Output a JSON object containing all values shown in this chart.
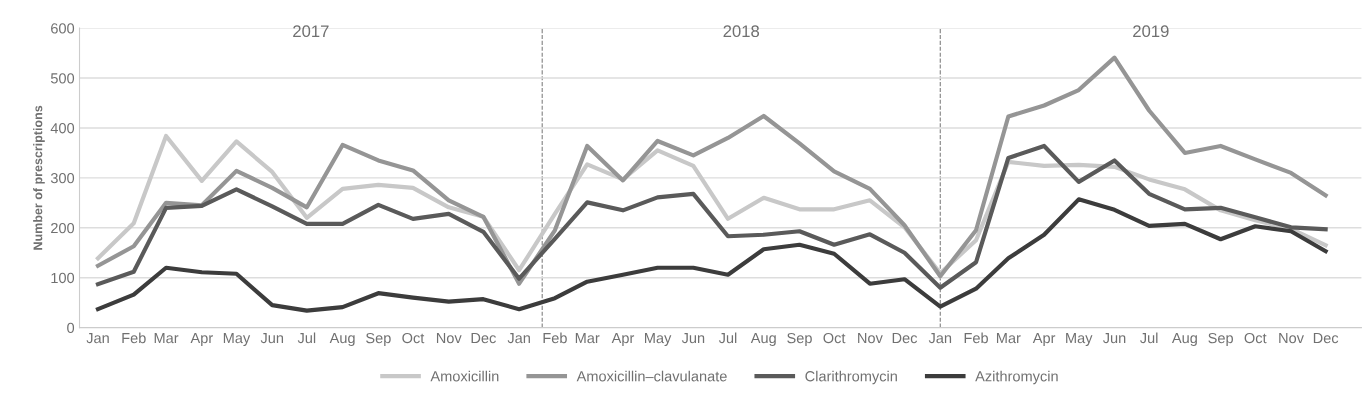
{
  "chart_data": {
    "type": "line",
    "ylabel": "Number of prescriptions",
    "x": [
      "2017-01",
      "2017-02",
      "2017-03",
      "2017-04",
      "2017-05",
      "2017-06",
      "2017-07",
      "2017-08",
      "2017-09",
      "2017-10",
      "2017-11",
      "2017-12",
      "2018-01",
      "2018-02",
      "2018-03",
      "2018-04",
      "2018-05",
      "2018-06",
      "2018-07",
      "2018-08",
      "2018-09",
      "2018-10",
      "2018-11",
      "2018-12",
      "2019-01",
      "2019-02",
      "2019-03",
      "2019-04",
      "2019-05",
      "2019-06",
      "2019-07",
      "2019-08",
      "2019-09",
      "2019-10",
      "2019-11",
      "2019-12"
    ],
    "xlim": [
      "2016-12-16",
      "2020-01-01"
    ],
    "xticks": [
      {
        "value": "2017-01",
        "label": "Jan"
      },
      {
        "value": "2017-02",
        "label": "Feb"
      },
      {
        "value": "2017-03",
        "label": "Mar"
      },
      {
        "value": "2017-04",
        "label": "Apr"
      },
      {
        "value": "2017-05",
        "label": "May"
      },
      {
        "value": "2017-06",
        "label": "Jun"
      },
      {
        "value": "2017-07",
        "label": "Jul"
      },
      {
        "value": "2017-08",
        "label": "Aug"
      },
      {
        "value": "2017-09",
        "label": "Sep"
      },
      {
        "value": "2017-10",
        "label": "Oct"
      },
      {
        "value": "2017-11",
        "label": "Nov"
      },
      {
        "value": "2017-12",
        "label": "Dec"
      },
      {
        "value": "2018-01",
        "label": "Jan"
      },
      {
        "value": "2018-02",
        "label": "Feb"
      },
      {
        "value": "2018-03",
        "label": "Mar"
      },
      {
        "value": "2018-04",
        "label": "Apr"
      },
      {
        "value": "2018-05",
        "label": "May"
      },
      {
        "value": "2018-06",
        "label": "Jun"
      },
      {
        "value": "2018-07",
        "label": "Jul"
      },
      {
        "value": "2018-08",
        "label": "Aug"
      },
      {
        "value": "2018-09",
        "label": "Sep"
      },
      {
        "value": "2018-10",
        "label": "Oct"
      },
      {
        "value": "2018-11",
        "label": "Nov"
      },
      {
        "value": "2018-12",
        "label": "Dec"
      },
      {
        "value": "2019-01",
        "label": "Jan"
      },
      {
        "value": "2019-02",
        "label": "Feb"
      },
      {
        "value": "2019-03",
        "label": "Mar"
      },
      {
        "value": "2019-04",
        "label": "Apr"
      },
      {
        "value": "2019-05",
        "label": "May"
      },
      {
        "value": "2019-06",
        "label": "Jun"
      },
      {
        "value": "2019-07",
        "label": "Jul"
      },
      {
        "value": "2019-08",
        "label": "Aug"
      },
      {
        "value": "2019-09",
        "label": "Sep"
      },
      {
        "value": "2019-10",
        "label": "Oct"
      },
      {
        "value": "2019-11",
        "label": "Nov"
      },
      {
        "value": "2019-12",
        "label": "Dec"
      }
    ],
    "ylim": [
      0,
      600
    ],
    "yticks": [
      0,
      100,
      200,
      300,
      400,
      500,
      600
    ],
    "grid": "y",
    "legend": "bottom",
    "marker": "none",
    "line_style": "solid",
    "series": [
      {
        "name": "Amoxicillin",
        "color": "#c8c8c8",
        "values": [
          139,
          209,
          384,
          294,
          373,
          312,
          220,
          278,
          286,
          280,
          241,
          222,
          115,
          228,
          327,
          297,
          355,
          324,
          218,
          260,
          237,
          237,
          255,
          201,
          109,
          175,
          332,
          324,
          326,
          322,
          297,
          277,
          235,
          215,
          198,
          165
        ]
      },
      {
        "name": "Amoxicillin–clavulanate",
        "color": "#959595",
        "values": [
          124,
          163,
          250,
          245,
          314,
          280,
          241,
          366,
          335,
          315,
          255,
          222,
          88,
          195,
          364,
          295,
          374,
          345,
          380,
          424,
          369,
          313,
          278,
          205,
          103,
          195,
          423,
          445,
          476,
          541,
          435,
          350,
          364,
          337,
          310,
          265
        ]
      },
      {
        "name": "Clarithromycin",
        "color": "#5a5a5a",
        "values": [
          87,
          112,
          240,
          244,
          277,
          243,
          208,
          208,
          246,
          218,
          228,
          192,
          98,
          178,
          251,
          235,
          261,
          268,
          183,
          186,
          193,
          166,
          187,
          150,
          80,
          131,
          340,
          364,
          292,
          335,
          268,
          237,
          240,
          221,
          201,
          197
        ]
      },
      {
        "name": "Azithromycin",
        "color": "#3c3c3c",
        "values": [
          37,
          66,
          120,
          111,
          108,
          45,
          34,
          41,
          69,
          60,
          52,
          57,
          37,
          59,
          92,
          106,
          120,
          120,
          106,
          157,
          166,
          148,
          88,
          97,
          42,
          78,
          139,
          186,
          257,
          236,
          204,
          208,
          177,
          203,
          193,
          153
        ]
      }
    ],
    "ref_lines": [
      {
        "axis": "x",
        "value": "2018-01-21",
        "color": "#808080",
        "line_style": "dashed"
      },
      {
        "axis": "x",
        "value": "2019-01",
        "color": "#808080",
        "line_style": "dashed"
      }
    ],
    "annotations": [
      "2017",
      "2018",
      "2019"
    ]
  }
}
